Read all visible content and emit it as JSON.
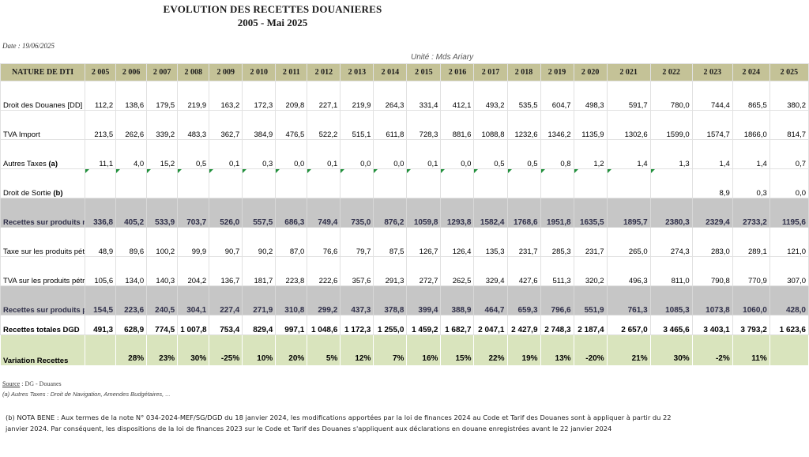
{
  "title": {
    "line1": "EVOLUTION DES RECETTES DOUANIERES",
    "line2": "2005 -  Mai 2025"
  },
  "date_label": "Date : 19/06/2025",
  "unit_label": "Unité : Mds Ariary",
  "table": {
    "first_header": "NATURE DE DTI",
    "years": [
      "2 005",
      "2 006",
      "2 007",
      "2 008",
      "2 009",
      "2 010",
      "2 011",
      "2 012",
      "2 013",
      "2 014",
      "2 015",
      "2 016",
      "2 017",
      "2 018",
      "2 019",
      "2 020",
      "2 021",
      "2 022",
      "2 023",
      "2 024",
      "2 025"
    ],
    "rows": [
      {
        "label": "Droit des Douanes [DD]",
        "values": [
          "112,2",
          "138,6",
          "179,5",
          "219,9",
          "163,2",
          "172,3",
          "209,8",
          "227,1",
          "219,9",
          "264,3",
          "331,4",
          "412,1",
          "493,2",
          "535,5",
          "604,7",
          "498,3",
          "591,7",
          "780,0",
          "744,4",
          "865,5",
          "380,2"
        ]
      },
      {
        "label": "TVA Import",
        "values": [
          "213,5",
          "262,6",
          "339,2",
          "483,3",
          "362,7",
          "384,9",
          "476,5",
          "522,2",
          "515,1",
          "611,8",
          "728,3",
          "881,6",
          "1088,8",
          "1232,6",
          "1346,2",
          "1135,9",
          "1302,6",
          "1599,0",
          "1574,7",
          "1866,0",
          "814,7"
        ]
      },
      {
        "label": "Autres Taxes",
        "label_suffix": "(a)",
        "values": [
          "11,1",
          "4,0",
          "15,2",
          "0,5",
          "0,1",
          "0,3",
          "0,0",
          "0,1",
          "0,0",
          "0,0",
          "0,1",
          "0,0",
          "0,5",
          "0,5",
          "0,8",
          "1,2",
          "1,4",
          "1,3",
          "1,4",
          "1,4",
          "0,7"
        ]
      },
      {
        "label": "Droit de Sortie",
        "label_suffix": "(b)",
        "values": [
          "",
          "",
          "",
          "",
          "",
          "",
          "",
          "",
          "",
          "",
          "",
          "",
          "",
          "",
          "",
          "",
          "",
          "",
          "8,9",
          "0,3",
          "0,0"
        ]
      },
      {
        "label": "Recettes sur produits non pétroliers",
        "values": [
          "336,8",
          "405,2",
          "533,9",
          "703,7",
          "526,0",
          "557,5",
          "686,3",
          "749,4",
          "735,0",
          "876,2",
          "1059,8",
          "1293,8",
          "1582,4",
          "1768,6",
          "1951,8",
          "1635,5",
          "1895,7",
          "2380,3",
          "2329,4",
          "2733,2",
          "1195,6"
        ]
      },
      {
        "label": "Taxe sur les produits pétroliers [TPP]",
        "values": [
          "48,9",
          "89,6",
          "100,2",
          "99,9",
          "90,7",
          "90,2",
          "87,0",
          "76,6",
          "79,7",
          "87,5",
          "126,7",
          "126,4",
          "135,3",
          "231,7",
          "285,3",
          "231,7",
          "265,0",
          "274,3",
          "283,0",
          "289,1",
          "121,0"
        ]
      },
      {
        "label": "TVA sur les produits pétroliers [TVP]",
        "values": [
          "105,6",
          "134,0",
          "140,3",
          "204,2",
          "136,7",
          "181,7",
          "223,8",
          "222,6",
          "357,6",
          "291,3",
          "272,7",
          "262,5",
          "329,4",
          "427,6",
          "511,3",
          "320,2",
          "496,3",
          "811,0",
          "790,8",
          "770,9",
          "307,0"
        ]
      },
      {
        "label": "Recettes sur produits pétroliers",
        "values": [
          "154,5",
          "223,6",
          "240,5",
          "304,1",
          "227,4",
          "271,9",
          "310,8",
          "299,2",
          "437,3",
          "378,8",
          "399,4",
          "388,9",
          "464,7",
          "659,3",
          "796,6",
          "551,9",
          "761,3",
          "1085,3",
          "1073,8",
          "1060,0",
          "428,0"
        ]
      },
      {
        "label": "Recettes totales DGD",
        "values": [
          "491,3",
          "628,9",
          "774,5",
          "1 007,8",
          "753,4",
          "829,4",
          "997,1",
          "1 048,6",
          "1 172,3",
          "1 255,0",
          "1 459,2",
          "1 682,7",
          "2 047,1",
          "2 427,9",
          "2 748,3",
          "2 187,4",
          "2 657,0",
          "3 465,6",
          "3 403,1",
          "3 793,2",
          "1 623,6"
        ]
      },
      {
        "label": "Variation Recettes",
        "values": [
          "",
          "28%",
          "23%",
          "30%",
          "-25%",
          "10%",
          "20%",
          "5%",
          "12%",
          "7%",
          "16%",
          "15%",
          "22%",
          "19%",
          "13%",
          "-20%",
          "21%",
          "30%",
          "-2%",
          "11%",
          ""
        ]
      }
    ]
  },
  "source_label": "Source",
  "source_value": " : DG - Douanes",
  "footnote_a": "(a) Autres Taxes : Droit de Navigation, Amendes Budgétaires, ...",
  "nota_bene": "(b) NOTA BENE : Aux termes de la note N° 034-2024-MEF/SG/DGD  du 18 janvier 2024, les modifications apportées par la loi de finances 2024 au Code et Tarif des Douanes sont à appliquer  à partir du 22 janvier 2024. Par conséquent,  les dispositions  de la loi de finances 2023 sur le Code et Tarif des Douanes s'appliquent  aux déclarations en douane enregistrées  avant le 22 janvier 2024",
  "colors": {
    "header_bg": "#c4c297",
    "subtotal_bg": "#c6c6c6",
    "variation_bg": "#d9e4bd",
    "comment_marker": "#1f8f3a"
  }
}
